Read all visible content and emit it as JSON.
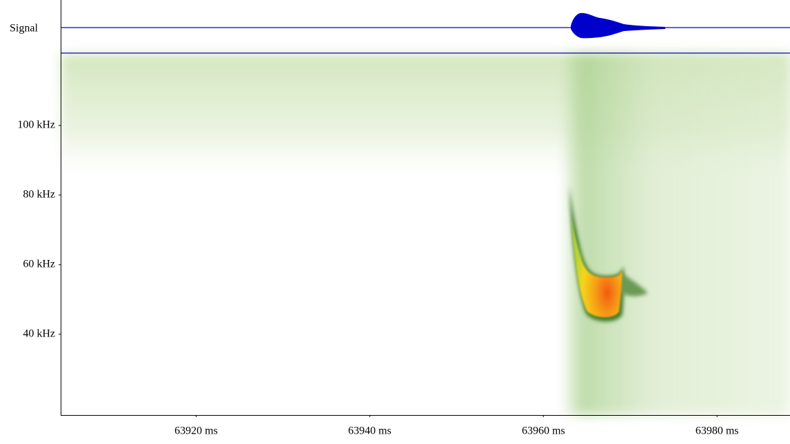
{
  "chart_data": {
    "type": "spectrogram",
    "signal_label": "Signal",
    "xlim": [
      63904.4,
      63988.4
    ],
    "xticks": [
      {
        "value": 63920,
        "label": "63920 ms"
      },
      {
        "value": 63940,
        "label": "63940 ms"
      },
      {
        "value": 63960,
        "label": "63960 ms"
      },
      {
        "value": 63980,
        "label": "63980 ms"
      }
    ],
    "ylim": [
      16.8,
      120.6
    ],
    "yticks": [
      {
        "value": 40,
        "label": "40 kHz"
      },
      {
        "value": 60,
        "label": "60 kHz"
      },
      {
        "value": 80,
        "label": "80 kHz"
      },
      {
        "value": 100,
        "label": "100 kHz"
      }
    ],
    "signal_color": "#0000cc"
  }
}
